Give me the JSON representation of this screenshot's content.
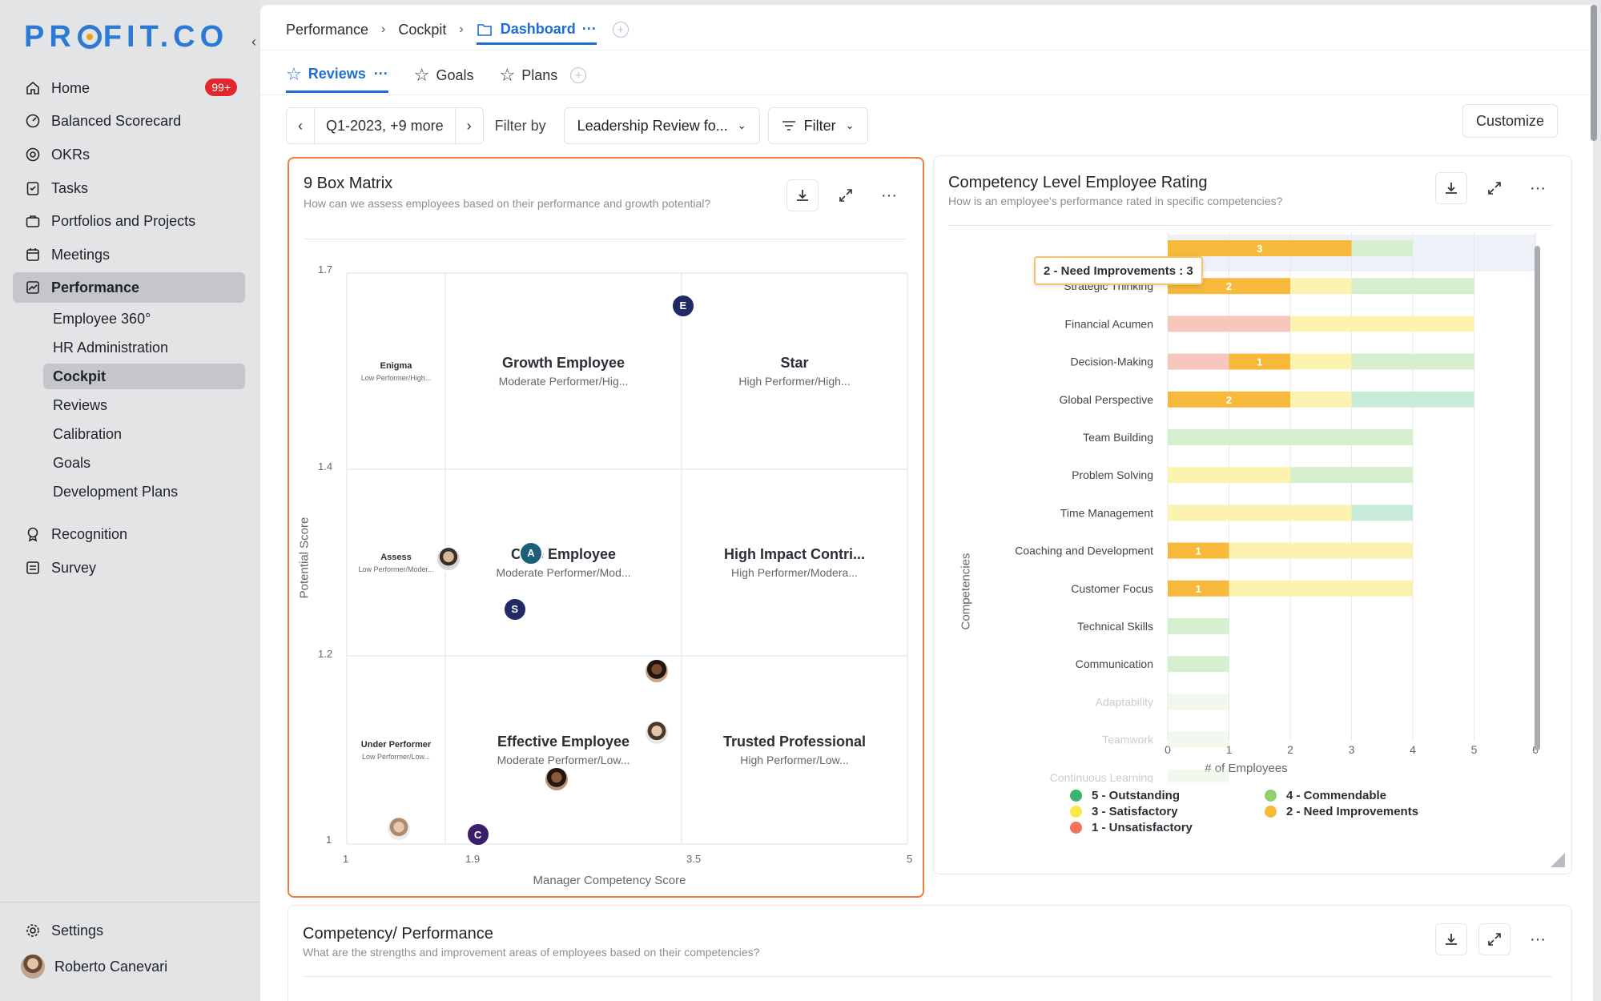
{
  "brand": {
    "logo_left": "PR",
    "logo_right": "FIT.CO"
  },
  "sidebar": {
    "collapse_glyph": "‹",
    "items": [
      {
        "label": "Home",
        "icon": "home-icon",
        "badge": "99+"
      },
      {
        "label": "Balanced Scorecard",
        "icon": "scorecard-icon"
      },
      {
        "label": "OKRs",
        "icon": "target-icon"
      },
      {
        "label": "Tasks",
        "icon": "tasks-icon"
      },
      {
        "label": "Portfolios and Projects",
        "icon": "briefcase-icon"
      },
      {
        "label": "Meetings",
        "icon": "calendar-icon"
      },
      {
        "label": "Performance",
        "icon": "chart-line-icon",
        "active": true
      }
    ],
    "sub_items": [
      {
        "label": "Employee 360°"
      },
      {
        "label": "HR Administration"
      },
      {
        "label": "Cockpit",
        "active": true
      },
      {
        "label": "Reviews"
      },
      {
        "label": "Calibration"
      },
      {
        "label": "Goals"
      },
      {
        "label": "Development Plans"
      }
    ],
    "bottom_items": [
      {
        "label": "Recognition",
        "icon": "award-icon"
      },
      {
        "label": "Survey",
        "icon": "survey-icon"
      }
    ],
    "settings_label": "Settings",
    "user_name": "Roberto Canevari"
  },
  "breadcrumb": {
    "items": [
      "Performance",
      "Cockpit"
    ],
    "active": "Dashboard",
    "more": "···"
  },
  "tabs": [
    {
      "label": "Reviews",
      "more": "···",
      "active": true
    },
    {
      "label": "Goals"
    },
    {
      "label": "Plans"
    }
  ],
  "toolbar": {
    "period": "Q1-2023, +9 more",
    "filter_by_label": "Filter by",
    "review_select": "Leadership Review fo...",
    "filter_label": "Filter",
    "customize_label": "Customize"
  },
  "nine_box": {
    "title": "9 Box Matrix",
    "subtitle": "How can we assess employees based on their performance and growth potential?",
    "y_axis_label": "Potential Score",
    "x_axis_label": "Manager Competency Score",
    "y_ticks": [
      "1.7",
      "1.4",
      "1.2",
      "1"
    ],
    "x_ticks": [
      "1",
      "1.9",
      "3.5",
      "5"
    ],
    "cells": [
      {
        "title": "Enigma",
        "subtitle": "Low Performer/High..."
      },
      {
        "title": "Growth Employee",
        "subtitle": "Moderate Performer/Hig..."
      },
      {
        "title": "Star",
        "subtitle": "High Performer/High..."
      },
      {
        "title": "Assess",
        "subtitle": "Low Performer/Moder..."
      },
      {
        "title": "Core Employee",
        "subtitle": "Moderate Performer/Mod..."
      },
      {
        "title": "High Impact Contri...",
        "subtitle": "High Performer/Modera..."
      },
      {
        "title": "Under Performer",
        "subtitle": "Low Performer/Low..."
      },
      {
        "title": "Effective Employee",
        "subtitle": "Moderate Performer/Low..."
      },
      {
        "title": "Trusted Professional",
        "subtitle": "High Performer/Low..."
      }
    ],
    "markers": [
      {
        "letter": "E",
        "x": 3.51,
        "y": 1.65,
        "color": "#1f2a66"
      },
      {
        "letter": "A",
        "x": 2.48,
        "y": 1.31,
        "color": "#1d5f78"
      },
      {
        "letter": "S",
        "x": 2.37,
        "y": 1.25,
        "color": "#1f2a66"
      },
      {
        "letter": "C",
        "x": 2.12,
        "y": 1.01,
        "color": "#3a1e6b"
      }
    ]
  },
  "competency": {
    "title": "Competency Level Employee Rating",
    "subtitle": "How is an employee's performance rated in specific competencies?",
    "tooltip": "2 - Need Improvements : 3",
    "y_axis_label": "Competencies",
    "x_axis_label": "# of Employees",
    "x_ticks": [
      "0",
      "1",
      "2",
      "3",
      "4",
      "5",
      "6"
    ],
    "legend": [
      {
        "label": "5 - Outstanding",
        "color": "#3cb371"
      },
      {
        "label": "4 - Commendable",
        "color": "#8fd16a"
      },
      {
        "label": "3 - Satisfactory",
        "color": "#f7e94a"
      },
      {
        "label": "2 - Need Improvements",
        "color": "#f6b93b"
      },
      {
        "label": "1 - Unsatisfactory",
        "color": "#f2725a"
      }
    ]
  },
  "chart_data": {
    "type": "bar",
    "orientation": "horizontal",
    "stacked": true,
    "xlabel": "# of Employees",
    "ylabel": "Competencies",
    "xlim": [
      0,
      6
    ],
    "categories": [
      "Adaptability",
      "Strategic Thinking",
      "Financial Acumen",
      "Decision-Making",
      "Global Perspective",
      "Team Building",
      "Problem Solving",
      "Time Management",
      "Coaching and Development",
      "Customer Focus",
      "Technical Skills",
      "Communication",
      "Adaptability",
      "Teamwork",
      "Continuous Learning"
    ],
    "series": [
      {
        "name": "1 - Unsatisfactory",
        "values": [
          0,
          0,
          2,
          1,
          0,
          0,
          0,
          0,
          0,
          0,
          0,
          0,
          0,
          0,
          0
        ]
      },
      {
        "name": "2 - Need Improvements",
        "values": [
          3,
          2,
          0,
          1,
          2,
          0,
          0,
          0,
          1,
          1,
          0,
          0,
          0,
          0,
          0
        ]
      },
      {
        "name": "3 - Satisfactory",
        "values": [
          0,
          1,
          3,
          1,
          1,
          0,
          2,
          3,
          3,
          3,
          0,
          0,
          0,
          0,
          0
        ]
      },
      {
        "name": "4 - Commendable",
        "values": [
          1,
          2,
          0,
          2,
          0,
          4,
          2,
          0,
          0,
          0,
          1,
          1,
          1,
          1,
          1
        ]
      },
      {
        "name": "5 - Outstanding",
        "values": [
          0,
          0,
          0,
          0,
          2,
          0,
          0,
          1,
          0,
          0,
          0,
          0,
          0,
          0,
          0
        ]
      }
    ]
  },
  "competency_performance": {
    "title": "Competency/ Performance",
    "subtitle": "What are the strengths and improvement areas of employees based on their competencies?"
  }
}
